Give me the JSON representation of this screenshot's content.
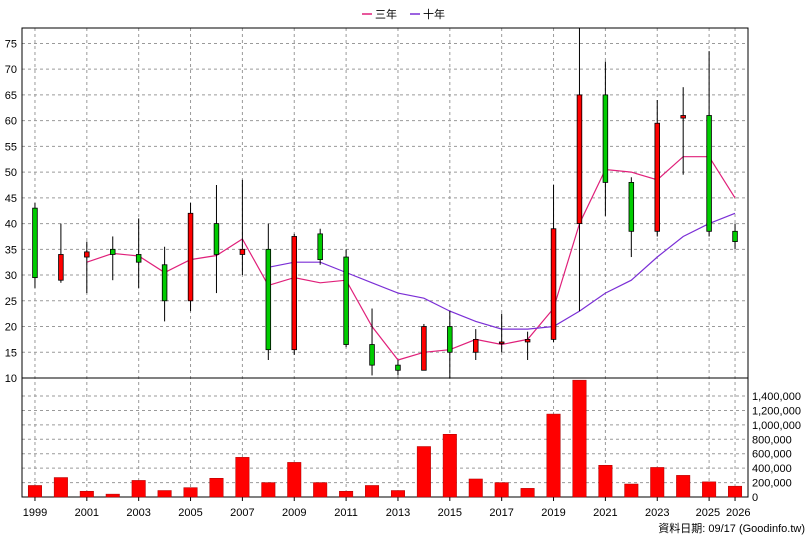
{
  "chart_data": {
    "type": "candlestick-with-volume",
    "legend": [
      {
        "label": "三年",
        "color": "#e0207a"
      },
      {
        "label": "十年",
        "color": "#7b2fd6"
      }
    ],
    "legend_position": "top-center",
    "grid": true,
    "colors": {
      "up": "#ff0000",
      "down": "#00cc00",
      "volume": "#ff0000"
    },
    "x_range": [
      1998.5,
      2026.5
    ],
    "x_ticks": [
      "1999",
      "2001",
      "2003",
      "2005",
      "2007",
      "2009",
      "2011",
      "2013",
      "2015",
      "2017",
      "2019",
      "2021",
      "2023",
      "2025",
      "2026"
    ],
    "price_ylim": [
      10,
      78
    ],
    "price_ticks": [
      "10",
      "15",
      "20",
      "25",
      "30",
      "35",
      "40",
      "45",
      "50",
      "55",
      "60",
      "65",
      "70",
      "75"
    ],
    "volume_ylim": [
      0,
      1650000
    ],
    "volume_ticks": [
      "0",
      "200,000",
      "400,000",
      "600,000",
      "800,000",
      "1,000,000",
      "1,200,000",
      "1,400,000"
    ],
    "candles": [
      {
        "year": 1999,
        "open": 43,
        "close": 29.5,
        "high": 44,
        "low": 27.5
      },
      {
        "year": 2000,
        "open": 29,
        "close": 34,
        "high": 40,
        "low": 28.5
      },
      {
        "year": 2001,
        "open": 33.5,
        "close": 34.5,
        "high": 36.5,
        "low": 26.5
      },
      {
        "year": 2002,
        "open": 35,
        "close": 34,
        "high": 37.5,
        "low": 29
      },
      {
        "year": 2003,
        "open": 34,
        "close": 32.5,
        "high": 41,
        "low": 27.5
      },
      {
        "year": 2004,
        "open": 32,
        "close": 25,
        "high": 35.5,
        "low": 21
      },
      {
        "year": 2005,
        "open": 25,
        "close": 42,
        "high": 44,
        "low": 23
      },
      {
        "year": 2006,
        "open": 40,
        "close": 34,
        "high": 47.5,
        "low": 26.5
      },
      {
        "year": 2007,
        "open": 34,
        "close": 35,
        "high": 48.5,
        "low": 30
      },
      {
        "year": 2008,
        "open": 35,
        "close": 15.5,
        "high": 40,
        "low": 13.5
      },
      {
        "year": 2009,
        "open": 15.5,
        "close": 37.5,
        "high": 38,
        "low": 14.5
      },
      {
        "year": 2010,
        "open": 38,
        "close": 33,
        "high": 39,
        "low": 32
      },
      {
        "year": 2011,
        "open": 33.5,
        "close": 16.5,
        "high": 35,
        "low": 16
      },
      {
        "year": 2012,
        "open": 16.5,
        "close": 12.5,
        "high": 23.5,
        "low": 10.5
      },
      {
        "year": 2013,
        "open": 12.5,
        "close": 11.5,
        "high": 13.5,
        "low": 10.5
      },
      {
        "year": 2014,
        "open": 11.5,
        "close": 20,
        "high": 20.5,
        "low": 11.5
      },
      {
        "year": 2015,
        "open": 20,
        "close": 15,
        "high": 23,
        "low": 10
      },
      {
        "year": 2016,
        "open": 15,
        "close": 17.5,
        "high": 19.5,
        "low": 13.5
      },
      {
        "year": 2017,
        "open": 17,
        "close": 17,
        "high": 22.5,
        "low": 15
      },
      {
        "year": 2018,
        "open": 17,
        "close": 17.5,
        "high": 19,
        "low": 13.5
      },
      {
        "year": 2019,
        "open": 17.5,
        "close": 39,
        "high": 47.5,
        "low": 17
      },
      {
        "year": 2020,
        "open": 40,
        "close": 65,
        "high": 78,
        "low": 23
      },
      {
        "year": 2021,
        "open": 65,
        "close": 48,
        "high": 71.5,
        "low": 41.5
      },
      {
        "year": 2022,
        "open": 48,
        "close": 38.5,
        "high": 49,
        "low": 33.5
      },
      {
        "year": 2023,
        "open": 38.5,
        "close": 59.5,
        "high": 64,
        "low": 37.5
      },
      {
        "year": 2024,
        "open": 60.5,
        "close": 61,
        "high": 66.5,
        "low": 49.5
      },
      {
        "year": 2025,
        "open": 61,
        "close": 38.5,
        "high": 73.5,
        "low": 37.5
      },
      {
        "year": 2026,
        "open": 38.5,
        "close": 36.5,
        "high": 40,
        "low": 35
      }
    ],
    "series": [
      {
        "name": "三年",
        "color": "#e0207a",
        "x": [
          2001,
          2002,
          2003,
          2004,
          2005,
          2006,
          2007,
          2008,
          2009,
          2010,
          2011,
          2012,
          2013,
          2014,
          2015,
          2016,
          2017,
          2018,
          2019,
          2020,
          2021,
          2022,
          2023,
          2024,
          2025,
          2026
        ],
        "values": [
          32.5,
          34.2,
          33.7,
          30.5,
          33,
          33.8,
          37,
          28,
          29.5,
          28.5,
          29,
          20,
          13.5,
          15,
          15.5,
          17.5,
          16.5,
          17.5,
          23.5,
          40,
          50.5,
          50,
          48.5,
          53,
          53,
          45
        ]
      },
      {
        "name": "十年",
        "color": "#7b2fd6",
        "x": [
          2008,
          2009,
          2010,
          2011,
          2012,
          2013,
          2014,
          2015,
          2016,
          2017,
          2018,
          2019,
          2020,
          2021,
          2022,
          2023,
          2024,
          2025,
          2026
        ],
        "values": [
          31.5,
          32.5,
          32.5,
          30.5,
          28.5,
          26.5,
          25.5,
          23,
          21,
          19.5,
          19.5,
          20,
          23,
          26.5,
          29,
          33.5,
          37.5,
          40,
          42
        ]
      }
    ],
    "volume": [
      {
        "year": 1999,
        "value": 160000
      },
      {
        "year": 2000,
        "value": 270000
      },
      {
        "year": 2001,
        "value": 80000
      },
      {
        "year": 2002,
        "value": 40000
      },
      {
        "year": 2003,
        "value": 230000
      },
      {
        "year": 2004,
        "value": 90000
      },
      {
        "year": 2005,
        "value": 130000
      },
      {
        "year": 2006,
        "value": 260000
      },
      {
        "year": 2007,
        "value": 550000
      },
      {
        "year": 2008,
        "value": 200000
      },
      {
        "year": 2009,
        "value": 480000
      },
      {
        "year": 2010,
        "value": 200000
      },
      {
        "year": 2011,
        "value": 80000
      },
      {
        "year": 2012,
        "value": 160000
      },
      {
        "year": 2013,
        "value": 90000
      },
      {
        "year": 2014,
        "value": 700000
      },
      {
        "year": 2015,
        "value": 870000
      },
      {
        "year": 2016,
        "value": 250000
      },
      {
        "year": 2017,
        "value": 200000
      },
      {
        "year": 2018,
        "value": 120000
      },
      {
        "year": 2019,
        "value": 1150000
      },
      {
        "year": 2020,
        "value": 1620000
      },
      {
        "year": 2021,
        "value": 440000
      },
      {
        "year": 2022,
        "value": 180000
      },
      {
        "year": 2023,
        "value": 410000
      },
      {
        "year": 2024,
        "value": 300000
      },
      {
        "year": 2025,
        "value": 210000
      },
      {
        "year": 2026,
        "value": 150000
      }
    ],
    "footer": "資料日期: 09/17 (Goodinfo.tw)"
  }
}
